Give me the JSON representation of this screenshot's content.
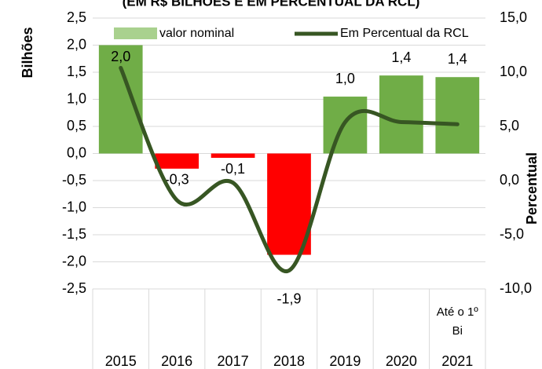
{
  "chart_data": {
    "type": "bar_line",
    "title": "(EM R$ BILHÕES E EM PERCENTUAL DA RCL)",
    "ylabel": "Bilhões",
    "y2label": "Percentual",
    "categories": [
      "2015",
      "2016",
      "2017",
      "2018",
      "2019",
      "2020",
      "2021"
    ],
    "annotation": [
      "Até o 1º",
      "Bi"
    ],
    "series": [
      {
        "name": "valor nominal",
        "type": "bar",
        "color": "#a9d18e",
        "colors": [
          "#70ad47",
          "#ff0000",
          "#ff0000",
          "#ff0000",
          "#70ad47",
          "#70ad47",
          "#70ad47"
        ],
        "values": [
          2.0,
          -0.28,
          -0.08,
          -1.87,
          1.05,
          1.44,
          1.41
        ],
        "value_labels": [
          "2,0",
          "-0,3",
          "-0,1",
          "-1,9",
          "1,0",
          "1,4",
          "1,4"
        ]
      },
      {
        "name": "Em Percentual da RCL",
        "type": "line",
        "color": "#375623",
        "axis": "y2",
        "values": [
          10.4,
          -1.8,
          -0.2,
          -8.3,
          5.4,
          5.4,
          5.2
        ]
      }
    ],
    "ylim": [
      -2.5,
      2.5
    ],
    "yticks": [
      {
        "value": -2.5,
        "label": "-2,5"
      },
      {
        "value": -2,
        "label": "-2,0"
      },
      {
        "value": -1.5,
        "label": "-1,5"
      },
      {
        "value": -1,
        "label": "-1,0"
      },
      {
        "value": -0.5,
        "label": "-0,5"
      },
      {
        "value": 0,
        "label": "0,0"
      },
      {
        "value": 0.5,
        "label": "0,5"
      },
      {
        "value": 1,
        "label": "1,0"
      },
      {
        "value": 1.5,
        "label": "1,5"
      },
      {
        "value": 2,
        "label": "2,0"
      },
      {
        "value": 2.5,
        "label": "2,5"
      }
    ],
    "y2lim": [
      -10,
      15
    ],
    "y2ticks": [
      {
        "value": -10,
        "label": "-10,0"
      },
      {
        "value": -5,
        "label": "-5,0"
      },
      {
        "value": 0,
        "label": "0,0"
      },
      {
        "value": 5,
        "label": "5,0"
      },
      {
        "value": 10,
        "label": "10,0"
      },
      {
        "value": 15,
        "label": "15,0"
      }
    ],
    "grid": true
  }
}
